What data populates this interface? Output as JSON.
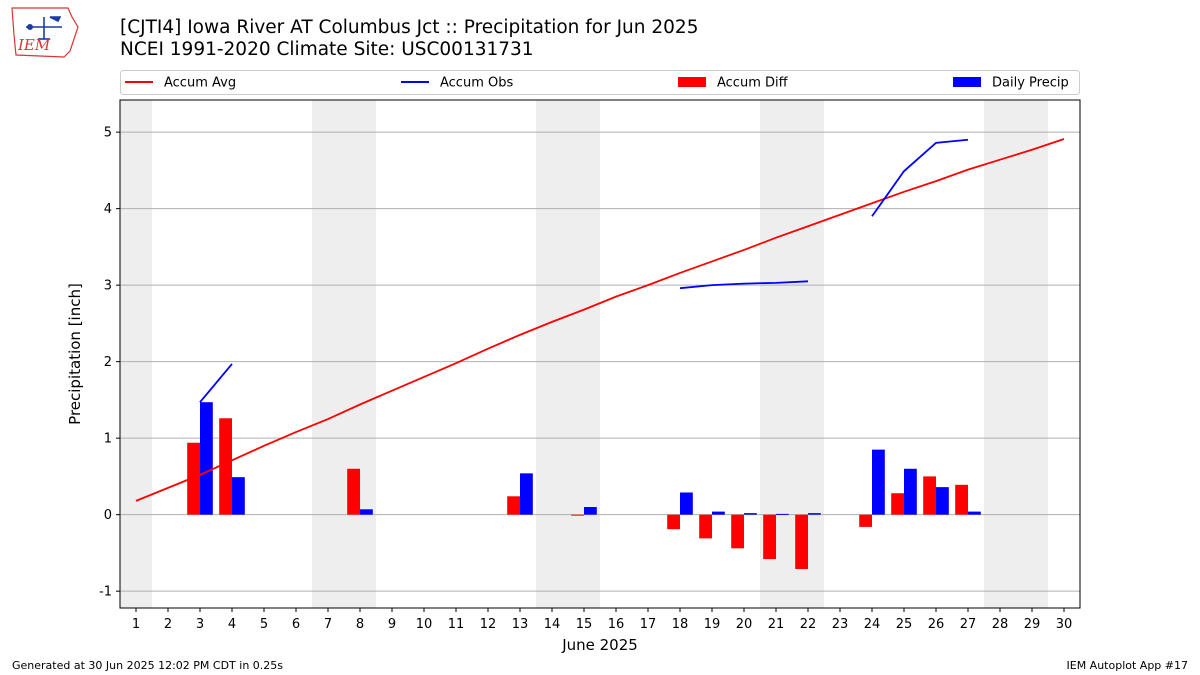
{
  "logo": {
    "text": "IEM",
    "icon": "iowa-state-outline-icon"
  },
  "header": {
    "title_line1": "[CJTI4] Iowa River  AT Columbus Jct :: Precipitation for Jun 2025",
    "title_line2": "NCEI 1991-2020 Climate Site: USC00131731"
  },
  "footer": {
    "left": "Generated at 30 Jun 2025 12:02 PM CDT in 0.25s",
    "right": "IEM Autoplot App #17"
  },
  "colors": {
    "avg": "#ff0000",
    "obs": "#0000ff",
    "diff": "#ff0000",
    "daily": "#0000ff",
    "weekend_band": "#eeeeee",
    "grid": "#b0b0b0"
  },
  "chart_data": {
    "type": "bar",
    "xlabel": "June 2025",
    "ylabel": "Precipitation [inch]",
    "ylim": [
      -1.22,
      5.42
    ],
    "yticks": [
      -1,
      0,
      1,
      2,
      3,
      4,
      5
    ],
    "x": [
      1,
      2,
      3,
      4,
      5,
      6,
      7,
      8,
      9,
      10,
      11,
      12,
      13,
      14,
      15,
      16,
      17,
      18,
      19,
      20,
      21,
      22,
      23,
      24,
      25,
      26,
      27,
      28,
      29,
      30
    ],
    "grid": "horizontal",
    "legend_position": "top",
    "weekend_bands": [
      [
        1,
        1
      ],
      [
        7,
        8
      ],
      [
        14,
        15
      ],
      [
        21,
        22
      ],
      [
        28,
        29
      ]
    ],
    "series": [
      {
        "name": "Accum Avg",
        "kind": "line",
        "color": "#ff0000",
        "x": [
          1,
          2,
          3,
          4,
          5,
          6,
          7,
          8,
          9,
          10,
          11,
          12,
          13,
          14,
          15,
          16,
          17,
          18,
          19,
          20,
          21,
          22,
          23,
          24,
          25,
          26,
          27,
          28,
          29,
          30
        ],
        "values": [
          0.18,
          0.35,
          0.52,
          0.71,
          0.9,
          1.08,
          1.25,
          1.44,
          1.62,
          1.8,
          1.98,
          2.17,
          2.35,
          2.52,
          2.68,
          2.85,
          3.0,
          3.16,
          3.31,
          3.46,
          3.62,
          3.77,
          3.92,
          4.07,
          4.22,
          4.36,
          4.51,
          4.64,
          4.77,
          4.91
        ]
      },
      {
        "name": "Accum Obs",
        "kind": "line",
        "color": "#0000ff",
        "segments": [
          {
            "x": [
              3,
              4
            ],
            "values": [
              1.47,
              1.97
            ]
          },
          {
            "x": [
              18,
              19,
              20,
              21,
              22
            ],
            "values": [
              2.96,
              3.0,
              3.02,
              3.03,
              3.05
            ]
          },
          {
            "x": [
              24,
              25,
              26,
              27
            ],
            "values": [
              3.9,
              4.49,
              4.86,
              4.9
            ]
          }
        ]
      },
      {
        "name": "Accum Diff",
        "kind": "bar",
        "color": "#ff0000",
        "offset": -0.2,
        "x": [
          3,
          4,
          8,
          13,
          15,
          18,
          19,
          20,
          21,
          22,
          24,
          25,
          26,
          27
        ],
        "values": [
          0.94,
          1.26,
          0.6,
          0.24,
          -0.01,
          -0.19,
          -0.31,
          -0.44,
          -0.58,
          -0.71,
          -0.16,
          0.28,
          0.5,
          0.39
        ]
      },
      {
        "name": "Daily Precip",
        "kind": "bar",
        "color": "#0000ff",
        "offset": 0.2,
        "x": [
          3,
          4,
          8,
          13,
          15,
          18,
          19,
          20,
          21,
          22,
          24,
          25,
          26,
          27
        ],
        "values": [
          1.47,
          0.49,
          0.07,
          0.54,
          0.1,
          0.29,
          0.04,
          0.02,
          0.01,
          0.02,
          0.85,
          0.6,
          0.36,
          0.04
        ]
      }
    ]
  }
}
